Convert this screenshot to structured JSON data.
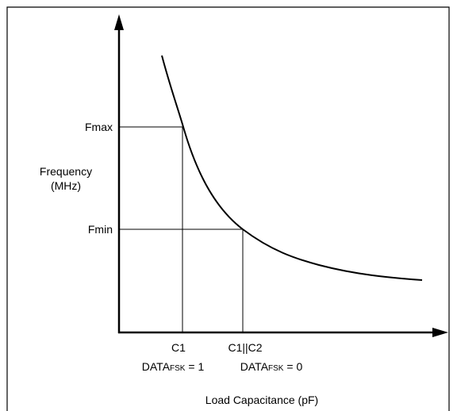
{
  "y_axis": {
    "label_line1": "Frequency",
    "label_line2": "(MHz)",
    "tick_high": "Fmax",
    "tick_low": "Fmin"
  },
  "x_axis": {
    "label": "Load Capacitance (pF)",
    "tick_1": "C1",
    "tick_2": "C1||C2"
  },
  "state_1": {
    "prefix": "DATA",
    "sub": "FSK",
    "suffix": " = 1"
  },
  "state_0": {
    "prefix": "DATA",
    "sub": "FSK",
    "suffix": " = 0"
  },
  "colors": {
    "line": "#000000",
    "background": "#ffffff"
  }
}
